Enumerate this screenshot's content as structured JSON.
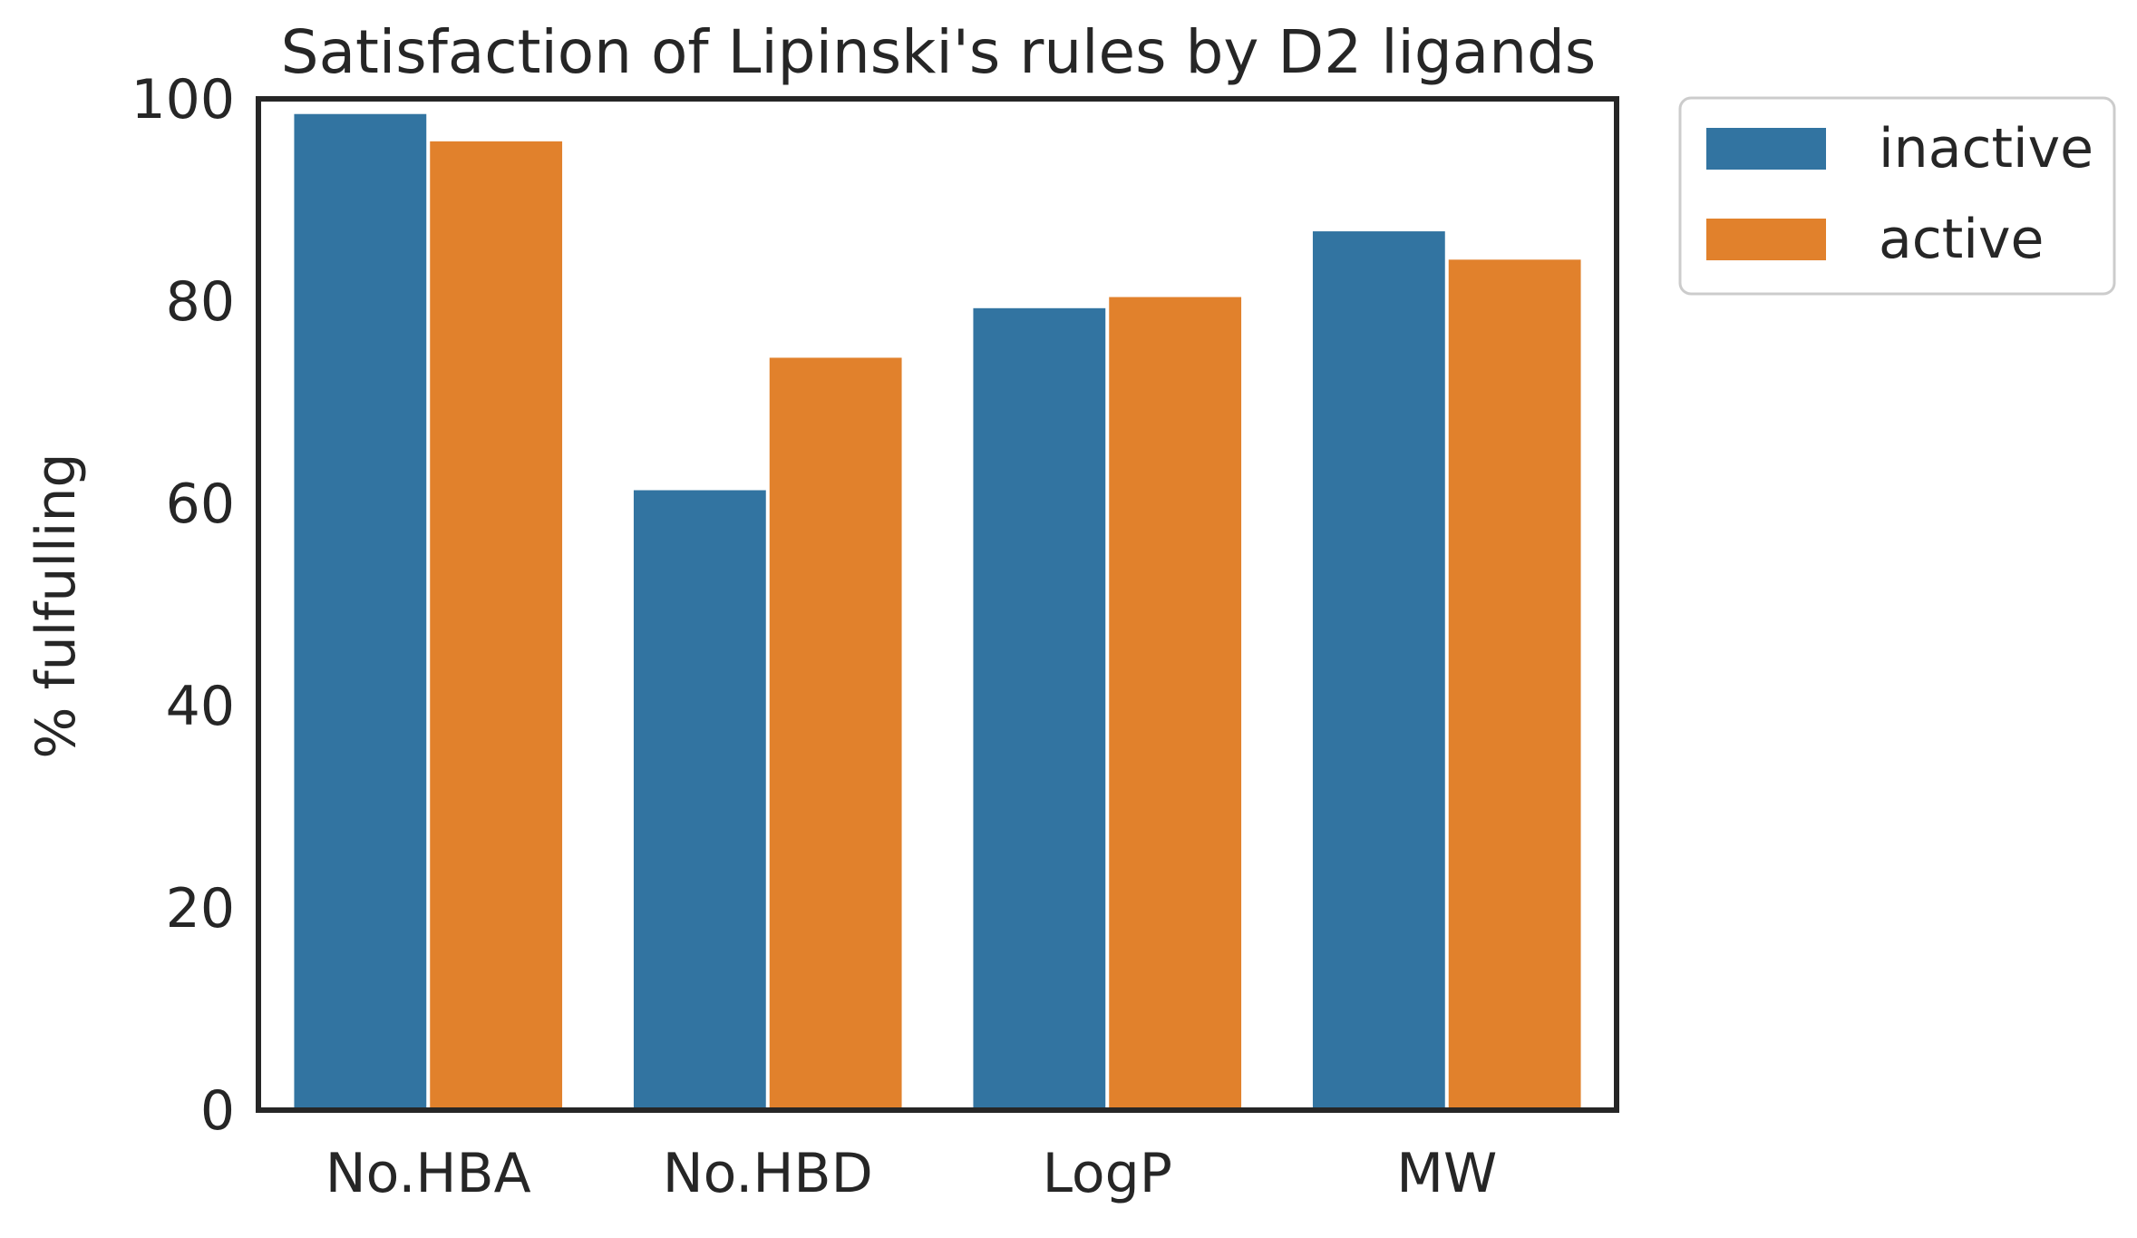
{
  "chart_data": {
    "type": "bar",
    "title": "Satisfaction of Lipinski's rules by D2 ligands",
    "xlabel": "",
    "ylabel": "% fulfulling",
    "ylim": [
      0,
      100
    ],
    "yticks": [
      0,
      20,
      40,
      60,
      80,
      100
    ],
    "categories": [
      "No.HBA",
      "No.HBD",
      "LogP",
      "MW"
    ],
    "series": [
      {
        "name": "inactive",
        "color": "#3274a1",
        "values": [
          98.5,
          61.3,
          79.3,
          86.9
        ]
      },
      {
        "name": "active",
        "color": "#e1812c",
        "values": [
          95.8,
          74.4,
          80.4,
          84.1
        ]
      }
    ],
    "grid": false,
    "legend": "outside-upper-right"
  }
}
